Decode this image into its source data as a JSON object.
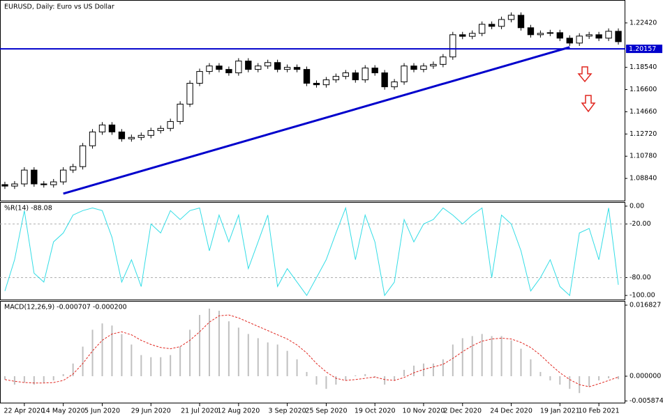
{
  "chart_data": [
    {
      "type": "candlestick",
      "title": "EURUSD, Daily:  Euro vs US Dollar",
      "categories": [
        null,
        null,
        "22 Apr 2020",
        null,
        null,
        null,
        "14 May 2020",
        null,
        null,
        null,
        "5 Jun 2020",
        null,
        null,
        null,
        null,
        "29 Jun 2020",
        null,
        null,
        null,
        null,
        "21 Jul 2020",
        null,
        null,
        null,
        "12 Aug 2020",
        null,
        null,
        null,
        null,
        "3 Sep 2020",
        null,
        null,
        null,
        "25 Sep 2020",
        null,
        null,
        null,
        null,
        "19 Oct 2020",
        null,
        null,
        null,
        null,
        "10 Nov 2020",
        null,
        null,
        null,
        "2 Dec 2020",
        null,
        null,
        null,
        null,
        "24 Dec 2020",
        null,
        null,
        null,
        null,
        "19 Jan 2021",
        null,
        null,
        null,
        "10 Feb 2021",
        null,
        null
      ],
      "open": [
        1.083,
        1.0817,
        1.0836,
        1.0957,
        1.0836,
        1.0829,
        1.0854,
        1.0957,
        1.0987,
        1.1169,
        1.129,
        1.1351,
        1.129,
        1.123,
        1.1242,
        1.126,
        1.1302,
        1.1321,
        1.1381,
        1.1533,
        1.1715,
        1.1818,
        1.1866,
        1.1836,
        1.1806,
        1.1909,
        1.1836,
        1.1866,
        1.1896,
        1.1836,
        1.1854,
        1.1836,
        1.1715,
        1.1702,
        1.1745,
        1.1775,
        1.1806,
        1.1745,
        1.1848,
        1.1806,
        1.1684,
        1.1727,
        1.1866,
        1.1836,
        1.1866,
        1.188,
        1.1945,
        1.2139,
        1.2125,
        1.2151,
        1.223,
        1.2212,
        1.2272,
        1.2309,
        1.22,
        1.2139,
        1.2151,
        1.2157,
        1.2109,
        1.2066,
        1.2127,
        1.2139,
        1.2109,
        1.2169
      ],
      "high": [
        1.0855,
        1.0861,
        1.0982,
        1.0982,
        1.0861,
        1.0879,
        1.0982,
        1.1012,
        1.1194,
        1.1315,
        1.1376,
        1.1376,
        1.1315,
        1.1267,
        1.1285,
        1.1327,
        1.1346,
        1.1406,
        1.1558,
        1.174,
        1.1843,
        1.1891,
        1.1891,
        1.1861,
        1.1934,
        1.1934,
        1.1891,
        1.1921,
        1.1921,
        1.1879,
        1.1879,
        1.1861,
        1.174,
        1.177,
        1.18,
        1.1831,
        1.1831,
        1.1873,
        1.1873,
        1.1831,
        1.1752,
        1.1891,
        1.1891,
        1.1891,
        1.1905,
        1.197,
        1.2164,
        1.2164,
        1.2176,
        1.2255,
        1.2255,
        1.2297,
        1.2334,
        1.2334,
        1.2225,
        1.2176,
        1.2182,
        1.2182,
        1.2134,
        1.2152,
        1.2164,
        1.2164,
        1.2194,
        1.2194
      ],
      "low": [
        1.0792,
        1.0792,
        1.0811,
        1.0811,
        1.0804,
        1.0804,
        1.0829,
        1.0932,
        1.0962,
        1.1144,
        1.1265,
        1.1265,
        1.1205,
        1.1205,
        1.1217,
        1.1235,
        1.1277,
        1.1296,
        1.1356,
        1.1508,
        1.169,
        1.1793,
        1.1811,
        1.1781,
        1.1781,
        1.1811,
        1.1811,
        1.1841,
        1.1811,
        1.1811,
        1.1811,
        1.169,
        1.1677,
        1.1677,
        1.172,
        1.175,
        1.172,
        1.172,
        1.1781,
        1.1659,
        1.1659,
        1.1702,
        1.1811,
        1.1811,
        1.1841,
        1.1855,
        1.192,
        1.21,
        1.21,
        1.2126,
        1.2187,
        1.2187,
        1.2247,
        1.2175,
        1.2114,
        1.2114,
        1.2126,
        1.2084,
        1.2041,
        1.2041,
        1.2102,
        1.2084,
        1.2084,
        1.2053
      ],
      "close": [
        1.0817,
        1.0836,
        1.0957,
        1.0836,
        1.0829,
        1.0854,
        1.0957,
        1.0987,
        1.1169,
        1.129,
        1.1351,
        1.129,
        1.123,
        1.1242,
        1.126,
        1.1302,
        1.1321,
        1.1381,
        1.1533,
        1.1715,
        1.1818,
        1.1866,
        1.1836,
        1.1806,
        1.1909,
        1.1836,
        1.1866,
        1.1896,
        1.1836,
        1.1854,
        1.1836,
        1.1715,
        1.1702,
        1.1745,
        1.1775,
        1.1806,
        1.1745,
        1.1848,
        1.1806,
        1.1684,
        1.1727,
        1.1866,
        1.1836,
        1.1866,
        1.188,
        1.1945,
        1.2139,
        1.2125,
        1.2151,
        1.223,
        1.2212,
        1.2272,
        1.2309,
        1.22,
        1.2139,
        1.2151,
        1.2157,
        1.2109,
        1.2066,
        1.2127,
        1.2139,
        1.2109,
        1.2169,
        1.2078
      ],
      "color": "#000000",
      "ylim": [
        1.069,
        1.243
      ],
      "yticks": [
        {
          "value": 1.2242,
          "label": "1.22420"
        },
        {
          "value": 1.1854,
          "label": "1.18540"
        },
        {
          "value": 1.166,
          "label": "1.16600"
        },
        {
          "value": 1.1466,
          "label": "1.14660"
        },
        {
          "value": 1.1272,
          "label": "1.12720"
        },
        {
          "value": 1.1078,
          "label": "1.10780"
        },
        {
          "value": 1.0884,
          "label": "1.08840"
        }
      ],
      "price_line": 1.20157,
      "trendline": [
        [
          6,
          1.0751
        ],
        [
          58,
          1.203
        ]
      ],
      "line_color": "#0000cc"
    },
    {
      "type": "line",
      "title": "%R(14) -88.08",
      "values": [
        -95,
        -60,
        -5,
        -75,
        -85,
        -40,
        -30,
        -10,
        -5,
        -2,
        -5,
        -35,
        -85,
        -60,
        -90,
        -20,
        -30,
        -5,
        -15,
        -5,
        -2,
        -50,
        -10,
        -40,
        -10,
        -70,
        -40,
        -10,
        -90,
        -70,
        -85,
        -100,
        -80,
        -60,
        -30,
        -2,
        -60,
        -10,
        -40,
        -100,
        -85,
        -15,
        -40,
        -20,
        -15,
        -2,
        -10,
        -20,
        -10,
        -2,
        -80,
        -10,
        -20,
        -50,
        -95,
        -80,
        -60,
        -90,
        -100,
        -30,
        -25,
        -60,
        -2,
        -88.08
      ],
      "color": "#33dde6",
      "ylim": [
        -104.6,
        4.6
      ],
      "yticks": [
        {
          "value": 0,
          "label": "0.00"
        },
        {
          "value": -20,
          "label": "-20.00"
        },
        {
          "value": -80,
          "label": "-80.00"
        },
        {
          "value": -100,
          "label": "-100.00"
        }
      ]
    },
    {
      "type": "macd",
      "title": "MACD(12,26,9) -0.000707 -0.000200",
      "values": [
        -0.0008,
        -0.002,
        -0.0015,
        -0.002,
        -0.0015,
        -0.001,
        0.0005,
        0.003,
        0.007,
        0.011,
        0.0125,
        0.012,
        0.01,
        0.0075,
        0.005,
        0.0045,
        0.0045,
        0.005,
        0.007,
        0.011,
        0.0145,
        0.016,
        0.0155,
        0.013,
        0.0115,
        0.01,
        0.009,
        0.008,
        0.0075,
        0.006,
        0.004,
        0.001,
        -0.002,
        -0.003,
        -0.002,
        -0.001,
        0.0002,
        0.0005,
        -0.0003,
        -0.002,
        -0.001,
        0.0015,
        0.0025,
        0.003,
        0.003,
        0.004,
        0.0075,
        0.009,
        0.0095,
        0.01,
        0.0095,
        0.0095,
        0.0085,
        0.0065,
        0.004,
        0.001,
        -0.001,
        -0.002,
        -0.003,
        -0.004,
        -0.0025,
        -0.001,
        -0.0005,
        -0.000707
      ],
      "signal": [
        -0.0008,
        -0.0012,
        -0.0015,
        -0.0016,
        -0.0016,
        -0.0015,
        -0.001,
        0.0005,
        0.003,
        0.006,
        0.0085,
        0.01,
        0.0105,
        0.0098,
        0.0085,
        0.0075,
        0.0068,
        0.0065,
        0.007,
        0.0085,
        0.0105,
        0.0128,
        0.0143,
        0.0145,
        0.0138,
        0.0128,
        0.0118,
        0.0108,
        0.0098,
        0.0088,
        0.0074,
        0.0055,
        0.003,
        0.001,
        -0.0005,
        -0.001,
        -0.0008,
        -0.0005,
        -0.0002,
        -0.0008,
        -0.001,
        -0.0003,
        0.0008,
        0.0016,
        0.0022,
        0.0028,
        0.0042,
        0.0058,
        0.0072,
        0.0083,
        0.0088,
        0.009,
        0.0088,
        0.008,
        0.0068,
        0.005,
        0.0028,
        0.0008,
        -0.0008,
        -0.002,
        -0.0025,
        -0.0018,
        -0.001,
        -0.0002
      ],
      "color": "#c0c0c0",
      "signal_color": "#e0261f",
      "ylim": [
        -0.00627,
        0.01765
      ],
      "yticks": [
        {
          "value": 0.016827,
          "label": "0.016827"
        },
        {
          "value": 0,
          "label": "0.000000"
        },
        {
          "value": -0.005874,
          "label": "-0.005874"
        }
      ]
    }
  ]
}
